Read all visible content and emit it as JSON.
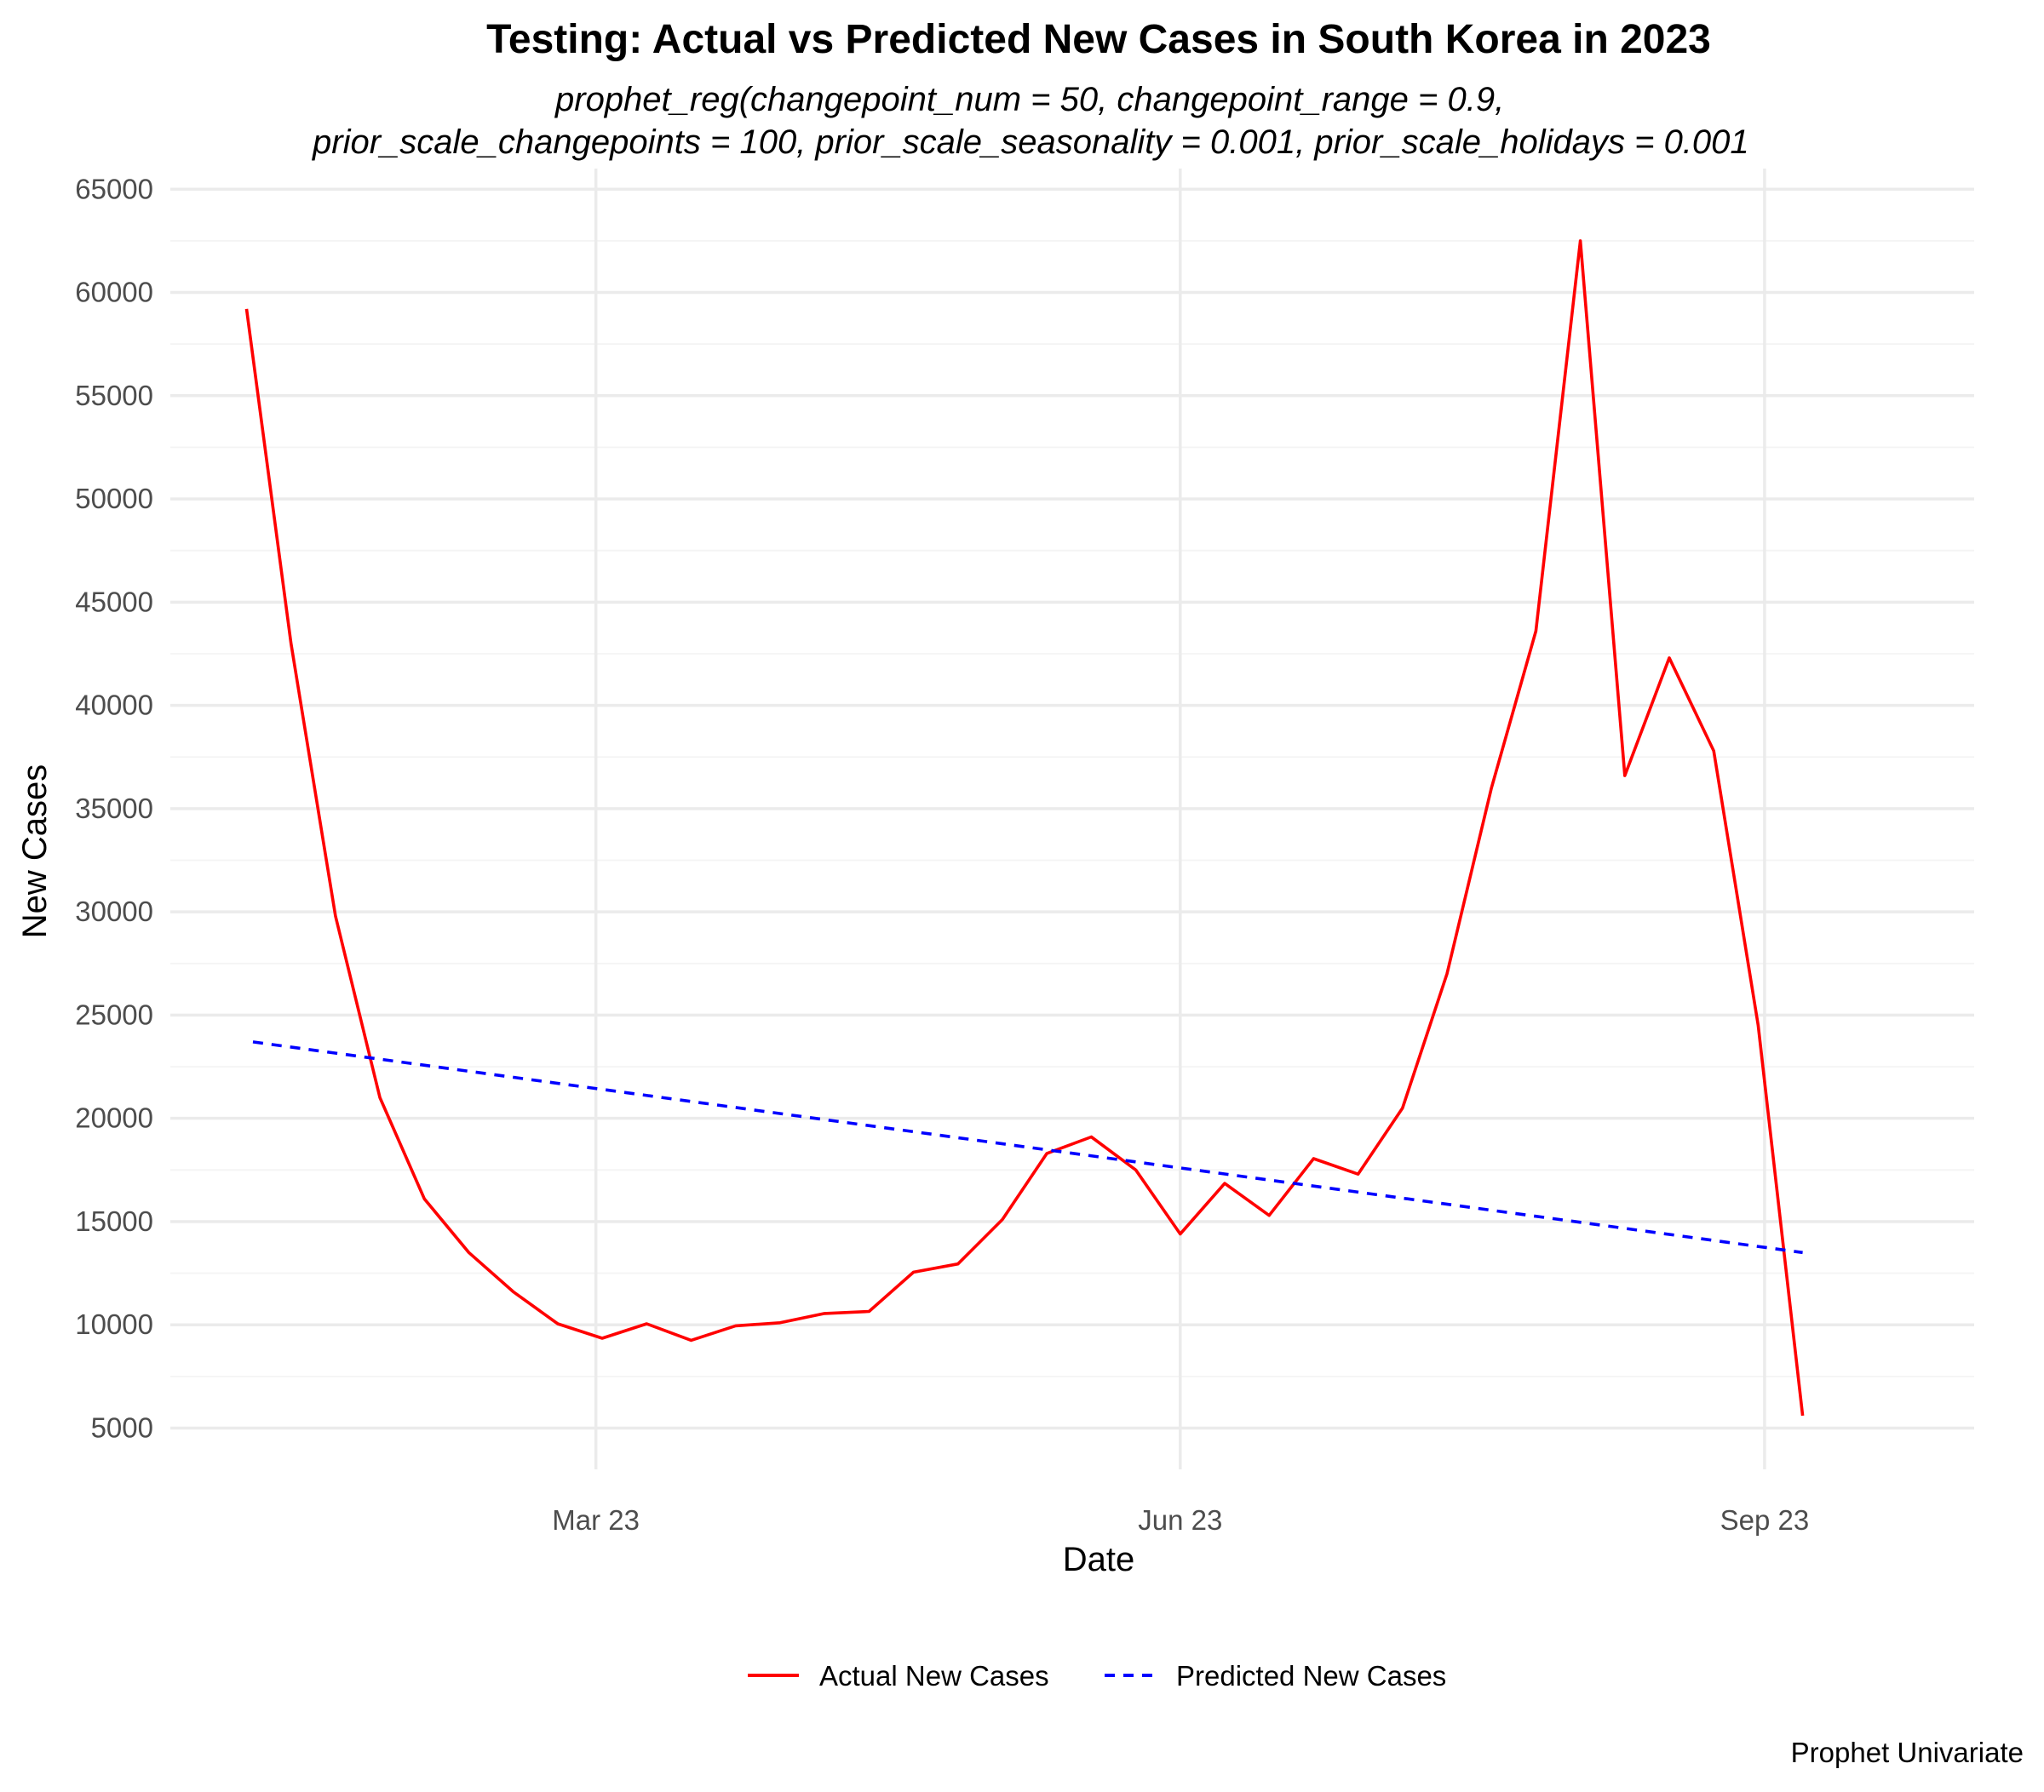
{
  "chart_data": {
    "type": "line",
    "title": "Testing: Actual vs Predicted New Cases in South Korea in 2023",
    "subtitle_lines": [
      "prophet_reg(changepoint_num = 50, changepoint_range = 0.9,",
      "prior_scale_changepoints = 100, prior_scale_seasonality = 0.001, prior_scale_holidays = 0.001"
    ],
    "xlabel": "Date",
    "ylabel": "New Cases",
    "caption": "Prophet Univariate",
    "xlim": [
      "2022-12-24",
      "2023-10-04"
    ],
    "ylim": [
      3000,
      66000
    ],
    "x_ticks": [
      {
        "date": "2023-03-01",
        "label": "Mar 23"
      },
      {
        "date": "2023-06-01",
        "label": "Jun 23"
      },
      {
        "date": "2023-09-01",
        "label": "Sep 23"
      }
    ],
    "y_ticks": [
      5000,
      10000,
      15000,
      20000,
      25000,
      30000,
      35000,
      40000,
      45000,
      50000,
      55000,
      60000,
      65000
    ],
    "grid": true,
    "legend_position": "bottom",
    "series": [
      {
        "name": "Actual New Cases",
        "color": "#FF0000",
        "dash": "solid",
        "points": [
          {
            "x": "2023-01-05",
            "y": 59200
          },
          {
            "x": "2023-01-12",
            "y": 43000
          },
          {
            "x": "2023-01-19",
            "y": 29800
          },
          {
            "x": "2023-01-26",
            "y": 21000
          },
          {
            "x": "2023-02-02",
            "y": 16100
          },
          {
            "x": "2023-02-09",
            "y": 13500
          },
          {
            "x": "2023-02-16",
            "y": 11600
          },
          {
            "x": "2023-02-23",
            "y": 10050
          },
          {
            "x": "2023-03-02",
            "y": 9350
          },
          {
            "x": "2023-03-09",
            "y": 10050
          },
          {
            "x": "2023-03-16",
            "y": 9250
          },
          {
            "x": "2023-03-23",
            "y": 9950
          },
          {
            "x": "2023-03-30",
            "y": 10100
          },
          {
            "x": "2023-04-06",
            "y": 10550
          },
          {
            "x": "2023-04-13",
            "y": 10650
          },
          {
            "x": "2023-04-20",
            "y": 12550
          },
          {
            "x": "2023-04-27",
            "y": 12950
          },
          {
            "x": "2023-05-04",
            "y": 15100
          },
          {
            "x": "2023-05-11",
            "y": 18300
          },
          {
            "x": "2023-05-18",
            "y": 19100
          },
          {
            "x": "2023-05-25",
            "y": 17500
          },
          {
            "x": "2023-06-01",
            "y": 14400
          },
          {
            "x": "2023-06-08",
            "y": 16850
          },
          {
            "x": "2023-06-15",
            "y": 15300
          },
          {
            "x": "2023-06-22",
            "y": 18050
          },
          {
            "x": "2023-06-29",
            "y": 17300
          },
          {
            "x": "2023-07-06",
            "y": 20500
          },
          {
            "x": "2023-07-13",
            "y": 27000
          },
          {
            "x": "2023-07-20",
            "y": 36000
          },
          {
            "x": "2023-07-27",
            "y": 43600
          },
          {
            "x": "2023-08-03",
            "y": 62500
          },
          {
            "x": "2023-08-10",
            "y": 36600
          },
          {
            "x": "2023-08-17",
            "y": 42300
          },
          {
            "x": "2023-08-24",
            "y": 37800
          },
          {
            "x": "2023-08-31",
            "y": 24500
          },
          {
            "x": "2023-09-07",
            "y": 5600
          }
        ]
      },
      {
        "name": "Predicted New Cases",
        "color": "#0000FF",
        "dash": "dashed",
        "points": [
          {
            "x": "2023-01-06",
            "y": 23700
          },
          {
            "x": "2023-09-07",
            "y": 13500
          }
        ]
      }
    ]
  }
}
